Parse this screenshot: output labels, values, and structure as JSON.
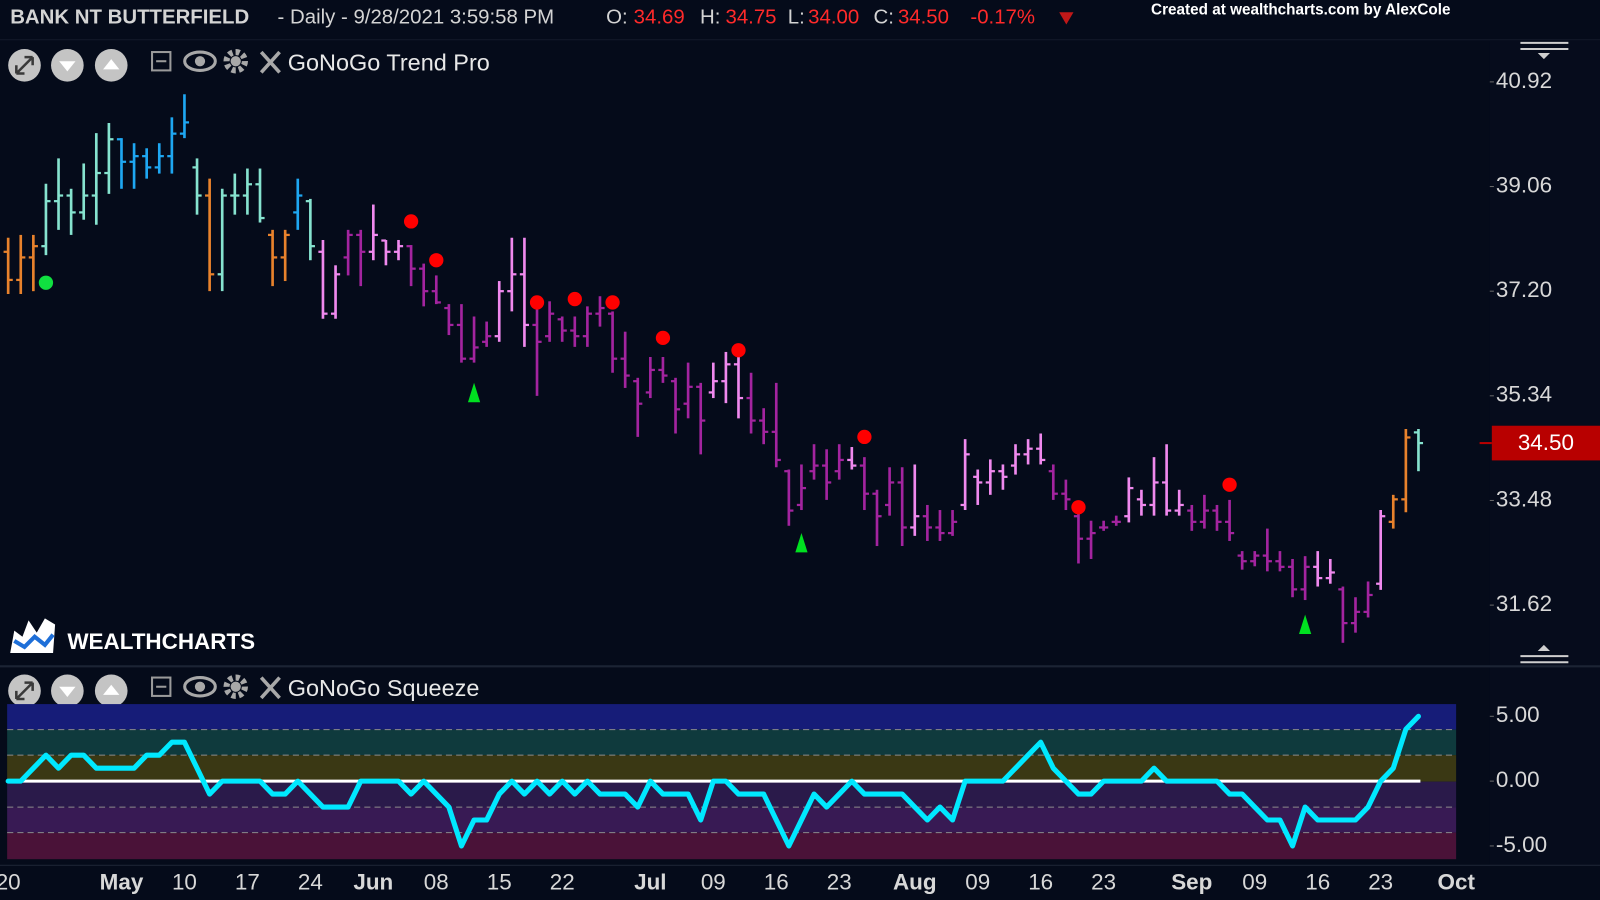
{
  "header": {
    "symbol": "BANK NT BUTTERFIELD",
    "interval": "- Daily - 9/28/2021 3:59:58 PM",
    "o_label": "O:",
    "open": "34.69",
    "h_label": "H:",
    "high": "34.75",
    "l_label": "L:",
    "low": "34.00",
    "c_label": "C:",
    "close": "34.50",
    "change": "-0.17%"
  },
  "credit": "Created at wealthcharts.com by AlexCole",
  "logo": "WEALTHCHARTS",
  "chart_data": [
    {
      "type": "ohlc",
      "title": "GoNoGo Trend Pro",
      "categories": [
        "20",
        null,
        null,
        null,
        null,
        null,
        null,
        null,
        null,
        "May",
        null,
        null,
        null,
        null,
        "10",
        null,
        null,
        null,
        null,
        "17",
        null,
        null,
        null,
        null,
        "24",
        null,
        null,
        null,
        null,
        "Jun",
        null,
        null,
        null,
        null,
        "08",
        null,
        null,
        null,
        null,
        "15",
        null,
        null,
        null,
        null,
        "22",
        null,
        null,
        null,
        null,
        null,
        null,
        "Jul",
        null,
        null,
        null,
        null,
        "09",
        null,
        null,
        null,
        null,
        "16",
        null,
        null,
        null,
        null,
        "23",
        null,
        null,
        null,
        null,
        null,
        "Aug",
        null,
        null,
        null,
        null,
        "09",
        null,
        null,
        null,
        null,
        "16",
        null,
        null,
        null,
        null,
        "23",
        null,
        null,
        null,
        null,
        null,
        null,
        "Sep",
        null,
        null,
        null,
        null,
        "09",
        null,
        null,
        null,
        null,
        "16",
        null,
        null,
        null,
        null,
        "23",
        null,
        null,
        null,
        null,
        null,
        "Oct"
      ],
      "open": [
        37.9,
        37.4,
        37.8,
        38.0,
        38.8,
        38.9,
        38.6,
        38.9,
        39.3,
        39.9,
        39.5,
        39.6,
        39.4,
        39.6,
        40.0,
        39.4,
        38.9,
        37.5,
        38.9,
        38.9,
        39.1,
        38.2,
        37.8,
        38.6,
        38.8,
        37.9,
        36.8,
        37.8,
        38.2,
        37.9,
        38.1,
        37.9,
        38.0,
        37.6,
        37.2,
        36.9,
        36.6,
        36.0,
        36.3,
        36.4,
        37.2,
        37.5,
        36.6,
        36.4,
        36.7,
        36.5,
        36.4,
        36.8,
        36.8,
        36.0,
        35.6,
        35.4,
        35.8,
        35.6,
        35.2,
        35.5,
        35.4,
        35.6,
        35.9,
        35.3,
        34.9,
        34.7,
        34.0,
        33.4,
        34.0,
        34.1,
        34.0,
        34.2,
        34.1,
        33.6,
        33.4,
        33.8,
        33.0,
        33.2,
        33.0,
        32.9,
        33.4,
        33.9,
        33.8,
        34.0,
        34.1,
        34.3,
        34.4,
        34.0,
        33.6,
        33.2,
        32.8,
        33.0,
        33.1,
        33.2,
        33.5,
        33.4,
        33.8,
        33.3,
        33.3,
        33.1,
        33.3,
        33.1,
        32.5,
        32.4,
        32.5,
        32.4,
        32.3,
        31.9,
        32.3,
        32.1,
        31.9,
        31.3,
        31.5,
        32.0,
        33.1,
        33.5,
        34.69,
        null,
        null,
        null
      ],
      "high": [
        38.15,
        38.2,
        38.2,
        39.11,
        39.56,
        39.02,
        39.47,
        40.01,
        40.19,
        39.92,
        39.83,
        39.74,
        39.83,
        40.29,
        40.7,
        39.56,
        39.2,
        39.02,
        39.29,
        39.38,
        39.38,
        38.29,
        38.29,
        39.2,
        38.84,
        38.11,
        37.66,
        38.29,
        38.29,
        38.74,
        38.11,
        38.11,
        38.02,
        37.69,
        37.48,
        36.97,
        36.97,
        36.75,
        36.66,
        37.38,
        38.15,
        38.15,
        37.02,
        37.02,
        36.75,
        36.75,
        36.93,
        37.11,
        36.84,
        36.48,
        35.66,
        36.03,
        36.03,
        35.66,
        35.93,
        35.57,
        35.93,
        36.12,
        36.21,
        35.75,
        35.12,
        35.57,
        34.03,
        34.12,
        34.48,
        34.39,
        34.48,
        34.43,
        34.25,
        33.67,
        34.07,
        34.07,
        34.12,
        33.4,
        33.31,
        33.31,
        34.57,
        34.03,
        34.21,
        34.12,
        34.48,
        34.57,
        34.67,
        34.12,
        33.85,
        33.31,
        33.12,
        33.12,
        33.21,
        33.89,
        33.67,
        34.25,
        34.48,
        33.67,
        33.4,
        33.58,
        33.4,
        33.49,
        32.58,
        32.58,
        32.98,
        32.58,
        32.44,
        32.49,
        32.58,
        32.44,
        31.95,
        31.76,
        32.04,
        33.31,
        33.58,
        34.75,
        34.75,
        null,
        null,
        null
      ],
      "low": [
        37.15,
        37.15,
        37.2,
        37.84,
        38.29,
        38.2,
        38.47,
        38.38,
        38.93,
        39.02,
        39.02,
        39.2,
        39.29,
        39.29,
        39.92,
        38.56,
        37.2,
        37.2,
        38.56,
        38.56,
        38.42,
        37.29,
        37.38,
        38.29,
        37.75,
        36.71,
        36.71,
        37.48,
        37.29,
        37.75,
        37.66,
        37.75,
        37.29,
        36.93,
        36.97,
        36.42,
        35.93,
        35.93,
        36.21,
        36.3,
        36.84,
        36.21,
        35.34,
        36.3,
        36.3,
        36.21,
        36.21,
        36.57,
        35.75,
        35.48,
        34.61,
        35.3,
        35.57,
        34.67,
        34.94,
        34.3,
        35.3,
        35.21,
        34.94,
        34.67,
        34.48,
        34.07,
        33.03,
        33.31,
        33.85,
        33.49,
        33.85,
        34.03,
        33.31,
        32.67,
        33.21,
        32.67,
        32.85,
        32.76,
        32.76,
        32.85,
        33.31,
        33.4,
        33.58,
        33.67,
        33.94,
        34.12,
        34.12,
        33.49,
        33.31,
        32.36,
        32.44,
        32.94,
        33.03,
        33.09,
        33.21,
        33.21,
        33.21,
        33.21,
        32.94,
        32.98,
        32.94,
        32.76,
        32.25,
        32.31,
        32.22,
        32.22,
        31.76,
        31.71,
        31.95,
        32.0,
        30.95,
        31.13,
        31.4,
        31.89,
        32.98,
        33.27,
        34.0,
        null,
        null,
        null
      ],
      "close": [
        37.4,
        37.8,
        38.0,
        38.8,
        38.9,
        38.6,
        38.9,
        39.3,
        39.9,
        39.5,
        39.6,
        39.4,
        39.6,
        40.0,
        40.2,
        38.9,
        37.5,
        38.9,
        38.9,
        39.1,
        38.5,
        37.8,
        38.2,
        38.9,
        38.0,
        36.8,
        37.5,
        38.2,
        37.9,
        38.2,
        37.9,
        38.0,
        37.6,
        37.2,
        37.0,
        36.6,
        36.0,
        36.2,
        36.4,
        37.2,
        37.5,
        36.6,
        36.3,
        36.8,
        36.5,
        36.4,
        36.8,
        36.9,
        36.0,
        35.7,
        35.2,
        35.8,
        35.7,
        35.1,
        35.5,
        34.9,
        35.6,
        35.9,
        35.3,
        34.9,
        34.7,
        34.2,
        33.3,
        33.7,
        34.1,
        33.8,
        34.2,
        34.1,
        33.6,
        33.2,
        33.8,
        33.0,
        33.2,
        33.0,
        32.9,
        33.1,
        34.3,
        33.8,
        34.0,
        33.9,
        34.3,
        34.4,
        34.2,
        33.6,
        33.5,
        32.8,
        32.9,
        33.0,
        33.1,
        33.7,
        33.4,
        33.8,
        33.3,
        33.4,
        33.1,
        33.3,
        33.1,
        32.9,
        32.4,
        32.5,
        32.4,
        32.3,
        31.9,
        32.3,
        32.1,
        32.2,
        31.3,
        31.5,
        31.8,
        33.2,
        33.5,
        34.6,
        34.5,
        null,
        null,
        null
      ],
      "colors": [
        "#e8822c",
        "#e8822c",
        "#e8822c",
        "#86e3cf",
        "#86e3cf",
        "#86e3cf",
        "#86e3cf",
        "#86e3cf",
        "#86e3cf",
        "#1ea7f2",
        "#1ea7f2",
        "#1ea7f2",
        "#1ea7f2",
        "#1ea7f2",
        "#1ea7f2",
        "#86e3cf",
        "#e8822c",
        "#86e3cf",
        "#86e3cf",
        "#86e3cf",
        "#86e3cf",
        "#e8822c",
        "#e8822c",
        "#1ea7f2",
        "#86e3cf",
        "#f089ee",
        "#f089ee",
        "#a3249f",
        "#a3249f",
        "#f089ee",
        "#f089ee",
        "#f089ee",
        "#a3249f",
        "#a3249f",
        "#a3249f",
        "#a3249f",
        "#a3249f",
        "#a3249f",
        "#a3249f",
        "#f089ee",
        "#f089ee",
        "#f089ee",
        "#a3249f",
        "#a3249f",
        "#a3249f",
        "#a3249f",
        "#a3249f",
        "#a3249f",
        "#a3249f",
        "#a3249f",
        "#a3249f",
        "#a3249f",
        "#a3249f",
        "#a3249f",
        "#a3249f",
        "#a3249f",
        "#f089ee",
        "#f089ee",
        "#f089ee",
        "#a3249f",
        "#a3249f",
        "#a3249f",
        "#a3249f",
        "#a3249f",
        "#a3249f",
        "#a3249f",
        "#a3249f",
        "#f089ee",
        "#a3249f",
        "#a3249f",
        "#a3249f",
        "#a3249f",
        "#f089ee",
        "#a3249f",
        "#a3249f",
        "#a3249f",
        "#f089ee",
        "#f089ee",
        "#f089ee",
        "#f089ee",
        "#f089ee",
        "#f089ee",
        "#f089ee",
        "#a3249f",
        "#a3249f",
        "#a3249f",
        "#a3249f",
        "#a3249f",
        "#a3249f",
        "#f089ee",
        "#f089ee",
        "#f089ee",
        "#f089ee",
        "#f089ee",
        "#a3249f",
        "#a3249f",
        "#a3249f",
        "#a3249f",
        "#a3249f",
        "#a3249f",
        "#a3249f",
        "#a3249f",
        "#a3249f",
        "#a3249f",
        "#f089ee",
        "#f089ee",
        "#a3249f",
        "#a3249f",
        "#a3249f",
        "#f089ee",
        "#e8822c",
        "#e8822c",
        "#86e3cf",
        null,
        null,
        null
      ],
      "down_signals": [
        null,
        null,
        null,
        null,
        null,
        null,
        null,
        null,
        null,
        null,
        null,
        null,
        null,
        null,
        null,
        null,
        null,
        null,
        null,
        null,
        null,
        null,
        null,
        null,
        null,
        null,
        null,
        null,
        null,
        null,
        null,
        null,
        38.44,
        null,
        37.75,
        null,
        null,
        null,
        null,
        null,
        null,
        null,
        37.0,
        null,
        null,
        37.06,
        null,
        null,
        37.0,
        null,
        null,
        null,
        36.37,
        null,
        null,
        null,
        null,
        null,
        36.15,
        null,
        null,
        null,
        null,
        null,
        null,
        null,
        null,
        null,
        34.61,
        null,
        null,
        null,
        null,
        null,
        null,
        null,
        null,
        null,
        null,
        null,
        null,
        null,
        null,
        null,
        null,
        33.36,
        null,
        null,
        null,
        null,
        null,
        null,
        null,
        null,
        null,
        null,
        null,
        33.76,
        null,
        null,
        null,
        null,
        null,
        null,
        null,
        null,
        null,
        null,
        null,
        null,
        null,
        null,
        null,
        null,
        null,
        null
      ],
      "down_signal_color": "#ff0000",
      "up_signals": [
        null,
        null,
        null,
        null,
        null,
        null,
        null,
        null,
        null,
        null,
        null,
        null,
        null,
        null,
        null,
        null,
        null,
        null,
        null,
        null,
        null,
        null,
        null,
        null,
        null,
        null,
        null,
        null,
        null,
        null,
        null,
        null,
        null,
        null,
        null,
        null,
        null,
        35.39,
        null,
        null,
        null,
        null,
        null,
        null,
        null,
        null,
        null,
        null,
        null,
        null,
        null,
        null,
        null,
        null,
        null,
        null,
        null,
        null,
        null,
        null,
        null,
        null,
        null,
        32.72,
        null,
        null,
        null,
        null,
        null,
        null,
        null,
        null,
        null,
        null,
        null,
        null,
        null,
        null,
        null,
        null,
        null,
        null,
        null,
        null,
        null,
        null,
        null,
        null,
        null,
        null,
        null,
        null,
        null,
        null,
        null,
        null,
        null,
        null,
        null,
        null,
        null,
        null,
        null,
        31.27,
        null,
        null,
        null,
        null,
        null,
        null,
        null,
        null,
        null,
        null,
        null,
        null
      ],
      "up_signal_color": "#00e020",
      "go_dots": [
        null,
        null,
        null,
        37.35,
        null,
        null,
        null,
        null,
        null,
        null,
        null,
        null,
        null,
        null,
        null,
        null,
        null,
        null,
        null,
        null,
        null,
        null,
        null,
        null,
        null,
        null,
        null,
        null,
        null,
        null,
        null,
        null,
        null,
        null,
        null,
        null,
        null,
        null,
        null,
        null,
        null,
        null,
        null,
        null,
        null,
        null,
        null,
        null,
        null,
        null,
        null,
        null,
        null,
        null,
        null,
        null,
        null,
        null,
        null,
        null,
        null,
        null,
        null,
        null,
        null,
        null,
        null,
        null,
        null,
        null,
        null,
        null,
        null,
        null,
        null,
        null,
        null,
        null,
        null,
        null,
        null,
        null,
        null,
        null,
        null,
        null,
        null,
        null,
        null,
        null,
        null,
        null,
        null,
        null,
        null,
        null,
        null,
        null,
        null,
        null,
        null,
        null,
        null,
        null,
        null,
        null,
        null,
        null,
        null,
        null,
        null,
        null,
        null,
        null,
        null,
        null
      ],
      "go_dot_color": "#10e040",
      "ylim": [
        30.55,
        41.65
      ],
      "yticks": [
        31.62,
        33.48,
        35.34,
        {
          "value": 37.2,
          "label": "37.20"
        },
        39.06,
        40.92
      ],
      "last_price": {
        "value": 34.5,
        "label": "34.50"
      },
      "last_price_color": "#b80000"
    },
    {
      "type": "line",
      "title": "GoNoGo Squeeze",
      "values": [
        0,
        0,
        1,
        2,
        1,
        2,
        2,
        1,
        1,
        1,
        1,
        2,
        2,
        3,
        3,
        1,
        -1,
        0,
        0,
        0,
        0,
        -1,
        -1,
        0,
        -1,
        -2,
        -2,
        -2,
        0,
        0,
        0,
        0,
        -1,
        0,
        -1,
        -2,
        -5,
        -3,
        -3,
        -1,
        0,
        -1,
        0,
        -1,
        0,
        -1,
        0,
        -1,
        -1,
        -1,
        -2,
        0,
        -1,
        -1,
        -1,
        -3,
        0,
        0,
        -1,
        -1,
        -1,
        -3,
        -5,
        -3,
        -1,
        -2,
        -1,
        0,
        -1,
        -1,
        -1,
        -1,
        -2,
        -3,
        -2,
        -3,
        0,
        0,
        0,
        0,
        1,
        2,
        3,
        1,
        0,
        -1,
        -1,
        0,
        0,
        0,
        0,
        1,
        0,
        0,
        0,
        0,
        0,
        -1,
        -1,
        -2,
        -3,
        -3,
        -5,
        -2,
        -3,
        -3,
        -3,
        -3,
        -2,
        0,
        1,
        4,
        5,
        null,
        null,
        null
      ],
      "color": "#00e8ff",
      "ylim": [
        -6.1,
        6.1
      ],
      "yticks": [
        {
          "value": 5,
          "label": "5.00"
        },
        {
          "value": 0,
          "label": "0.00"
        },
        {
          "value": -5,
          "label": "-5.00"
        }
      ],
      "zero_line": true
    }
  ]
}
